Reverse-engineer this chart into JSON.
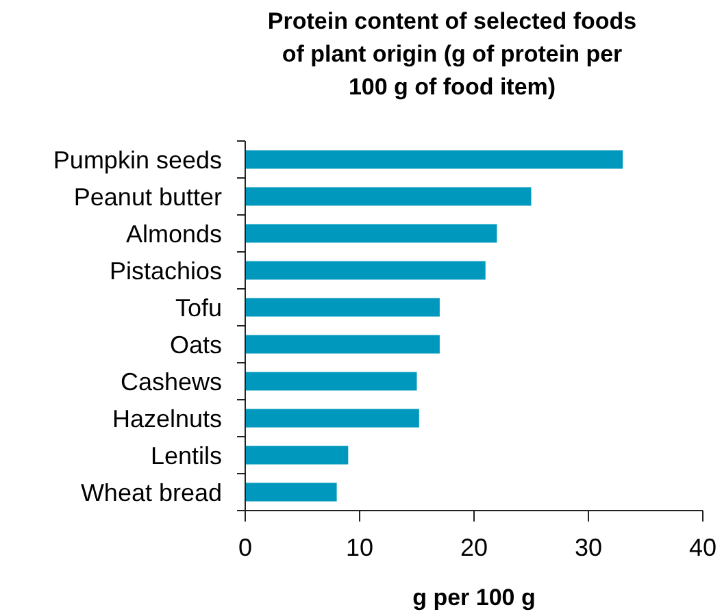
{
  "chart_data": {
    "type": "bar",
    "orientation": "horizontal",
    "title": "Protein content of selected foods of plant origin (g of protein per 100 g of food item)",
    "xlabel": "g per 100 g",
    "categories": [
      "Pumpkin seeds",
      "Peanut butter",
      "Almonds",
      "Pistachios",
      "Tofu",
      "Oats",
      "Cashews",
      "Hazelnuts",
      "Lentils",
      "Wheat bread"
    ],
    "values": [
      33,
      25,
      22,
      21,
      17,
      17,
      15,
      15.2,
      9,
      8
    ],
    "color": "#0099bd",
    "xlim": [
      0,
      40
    ],
    "xticks": [
      0,
      10,
      20,
      30,
      40
    ],
    "grid": false
  }
}
